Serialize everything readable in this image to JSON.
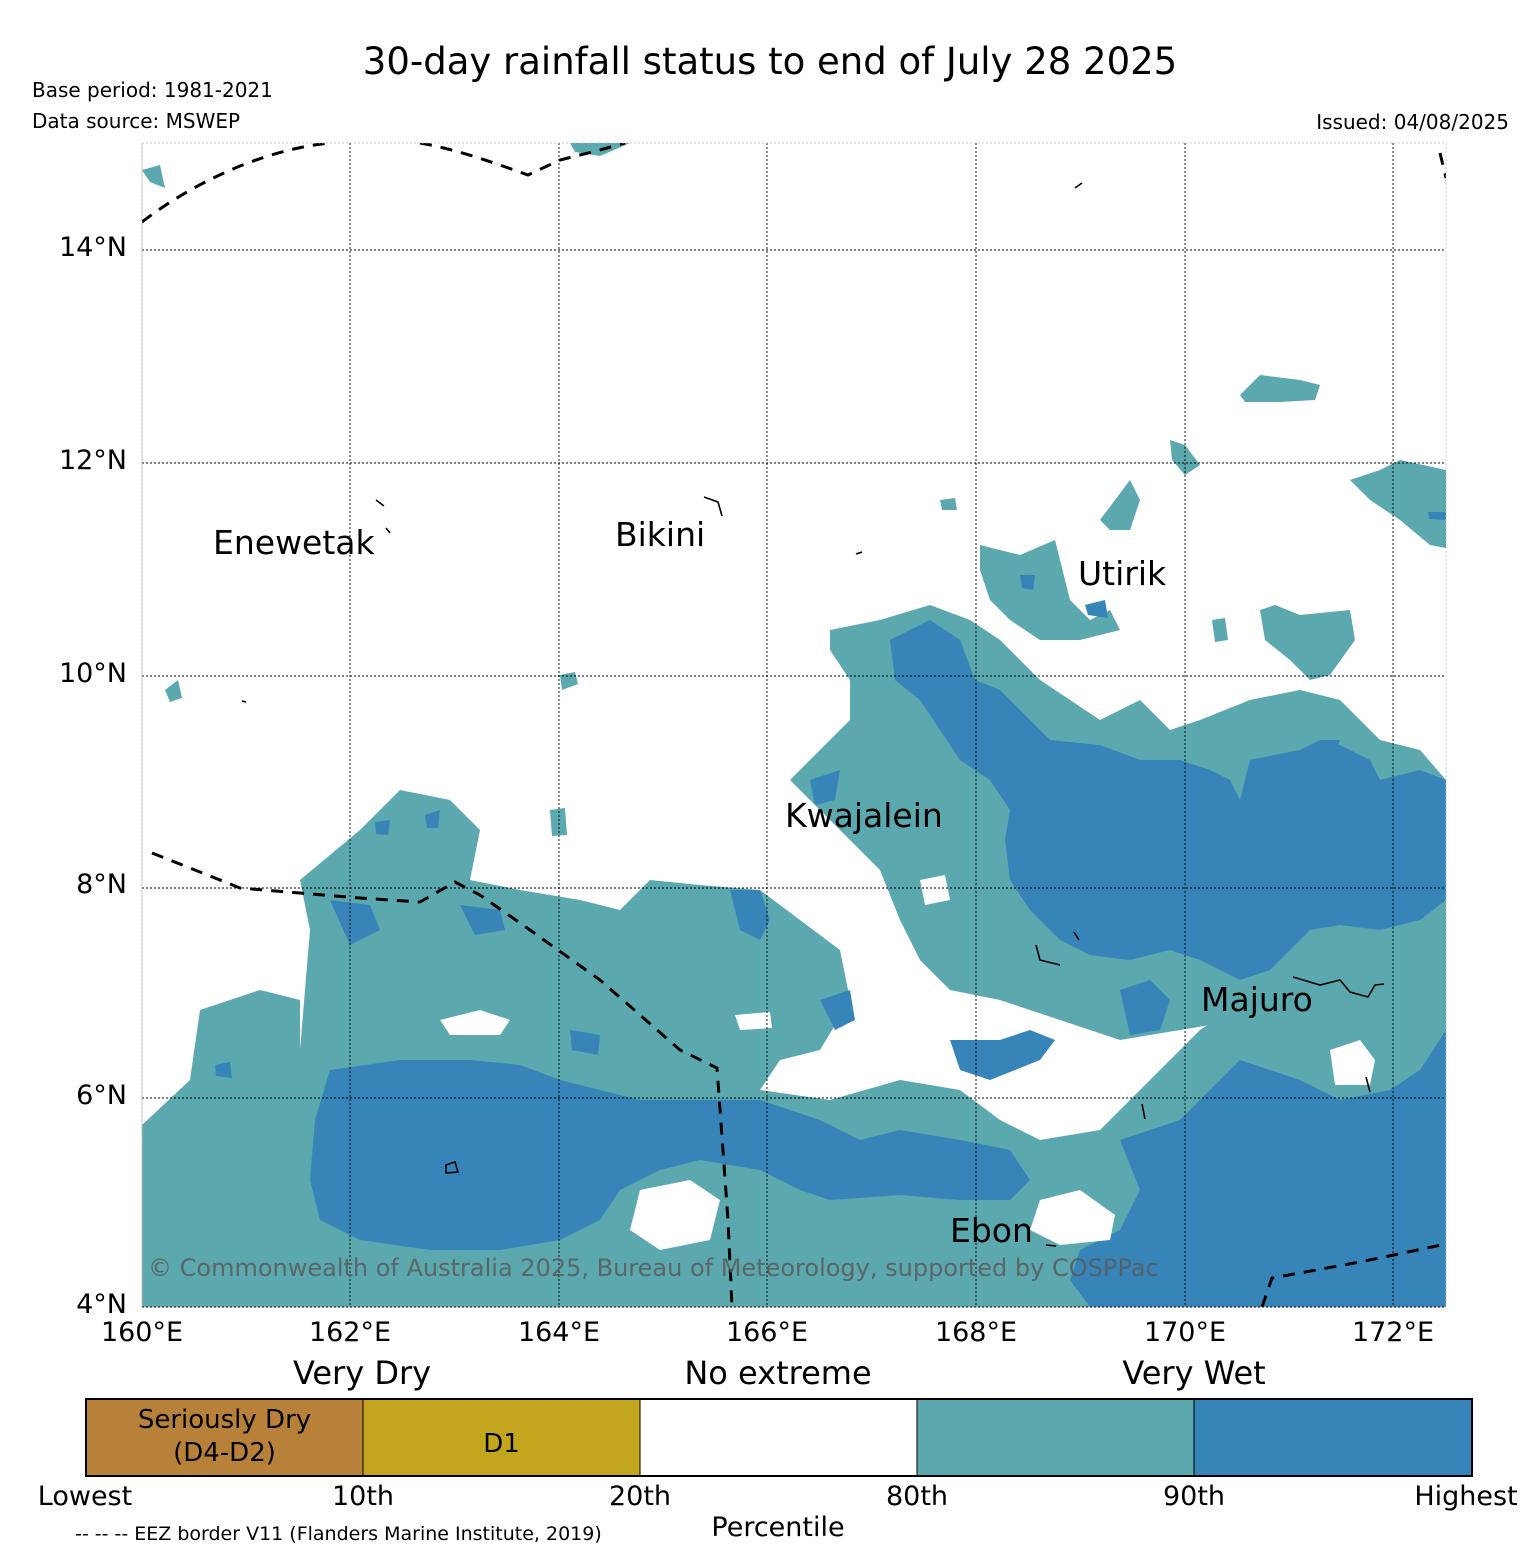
{
  "header": {
    "title": "30-day rainfall status to end of July 28 2025",
    "base_period": "Base period: 1981-2021",
    "data_source": "Data source: MSWEP",
    "issued": "Issued: 04/08/2025"
  },
  "map": {
    "region": {
      "lon_range": [
        160,
        172.5
      ],
      "lat_range": [
        4,
        15
      ]
    },
    "lon_ticks": [
      "160°E",
      "162°E",
      "164°E",
      "166°E",
      "168°E",
      "170°E",
      "172°E"
    ],
    "lat_ticks": [
      "4°N",
      "6°N",
      "8°N",
      "10°N",
      "12°N",
      "14°N"
    ],
    "places": {
      "enewetak": "Enewetak",
      "bikini": "Bikini",
      "utirik": "Utirik",
      "kwajalein": "Kwajalein",
      "majuro": "Majuro",
      "ebon": "Ebon"
    },
    "copyright": "© Commonwealth of Australia 2025, Bureau of Meteorology, supported by COSPPac",
    "colors": {
      "very_wet": "#5ba8ae",
      "very_wet_90": "#3784b9",
      "no_extreme": "#ffffff",
      "d1": "#c4a61e",
      "seriously_dry": "#b8813a",
      "eez_border": "#000000"
    }
  },
  "legend": {
    "group_labels": {
      "very_dry": "Very Dry",
      "no_extreme": "No extreme",
      "very_wet": "Very Wet"
    },
    "boxes": {
      "seriously_dry": "Seriously Dry\n(D4-D2)",
      "d1": "D1"
    },
    "percentiles": [
      "Lowest",
      "10th",
      "20th",
      "80th",
      "90th",
      "Highest"
    ],
    "axis_label": "Percentile",
    "eez_note": "-- -- -- EEZ border V11 (Flanders Marine Institute, 2019)"
  }
}
